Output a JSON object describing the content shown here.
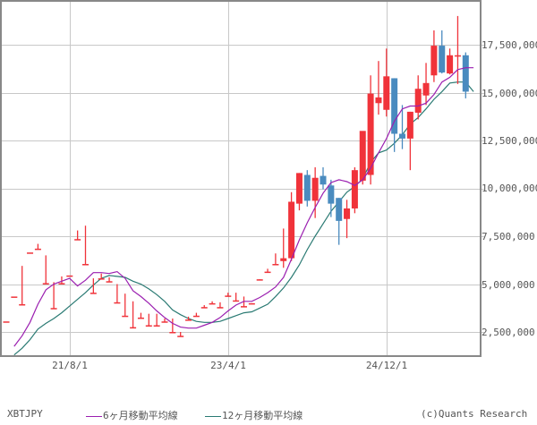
{
  "chart_data": {
    "type": "candlestick",
    "title": "",
    "symbol": "XBTJPY",
    "interval": "monthly",
    "xlabel": "",
    "ylabel": "",
    "ylim": [
      1200000,
      19700000
    ],
    "grid": true,
    "y_ticks": [
      "2,500,000",
      "5,000,000",
      "7,500,000",
      "10,000,000",
      "12,500,000",
      "15,000,000",
      "17,500,000"
    ],
    "y_tick_values": [
      2500000,
      5000000,
      7500000,
      10000000,
      12500000,
      15000000,
      17500000
    ],
    "x_ticks": [
      "21/8/1",
      "23/4/1",
      "24/12/1"
    ],
    "x_tick_index": [
      8.2,
      28.2,
      48.2
    ],
    "legend": [
      {
        "name": "6ヶ月移動平均線",
        "color": "#9b1fb0"
      },
      {
        "name": "12ヶ月移動平均線",
        "color": "#2a7a73"
      }
    ],
    "up_color": "#f0333a",
    "down_color": "#4a8bbf",
    "candles": [
      {
        "o": 3.0,
        "h": 3.0,
        "l": 3.0,
        "c": 3.05
      },
      {
        "o": 4.3,
        "h": 4.3,
        "l": 4.3,
        "c": 4.35
      },
      {
        "o": 3.9,
        "h": 5.95,
        "l": 3.9,
        "c": 3.95
      },
      {
        "o": 6.6,
        "h": 6.6,
        "l": 6.6,
        "c": 6.65
      },
      {
        "o": 6.8,
        "h": 7.1,
        "l": 6.8,
        "c": 6.85
      },
      {
        "o": 5.0,
        "h": 6.5,
        "l": 5.0,
        "c": 5.05
      },
      {
        "o": 3.7,
        "h": 5.1,
        "l": 3.7,
        "c": 3.75
      },
      {
        "o": 5.0,
        "h": 5.4,
        "l": 5.0,
        "c": 5.05
      },
      {
        "o": 5.4,
        "h": 5.4,
        "l": 5.4,
        "c": 5.45
      },
      {
        "o": 7.3,
        "h": 7.8,
        "l": 7.3,
        "c": 7.35
      },
      {
        "o": 6.0,
        "h": 8.05,
        "l": 6.0,
        "c": 6.05
      },
      {
        "o": 4.5,
        "h": 5.3,
        "l": 4.5,
        "c": 4.55
      },
      {
        "o": 5.25,
        "h": 5.55,
        "l": 5.25,
        "c": 5.3
      },
      {
        "o": 5.1,
        "h": 5.35,
        "l": 5.1,
        "c": 5.15
      },
      {
        "o": 4.0,
        "h": 5.0,
        "l": 4.0,
        "c": 4.05
      },
      {
        "o": 3.3,
        "h": 4.5,
        "l": 3.3,
        "c": 3.35
      },
      {
        "o": 2.7,
        "h": 4.1,
        "l": 2.7,
        "c": 2.75
      },
      {
        "o": 3.2,
        "h": 3.5,
        "l": 3.2,
        "c": 3.25
      },
      {
        "o": 2.8,
        "h": 3.45,
        "l": 2.8,
        "c": 2.85
      },
      {
        "o": 2.8,
        "h": 3.45,
        "l": 2.8,
        "c": 2.85
      },
      {
        "o": 3.0,
        "h": 3.2,
        "l": 3.0,
        "c": 3.05
      },
      {
        "o": 2.45,
        "h": 3.2,
        "l": 2.45,
        "c": 2.5
      },
      {
        "o": 2.25,
        "h": 2.5,
        "l": 2.25,
        "c": 2.3
      },
      {
        "o": 3.1,
        "h": 3.3,
        "l": 3.1,
        "c": 3.15
      },
      {
        "o": 3.3,
        "h": 3.5,
        "l": 3.3,
        "c": 3.35
      },
      {
        "o": 3.75,
        "h": 3.9,
        "l": 3.75,
        "c": 3.8
      },
      {
        "o": 3.95,
        "h": 4.1,
        "l": 3.95,
        "c": 4.0
      },
      {
        "o": 3.75,
        "h": 4.05,
        "l": 3.75,
        "c": 3.8
      },
      {
        "o": 4.35,
        "h": 4.55,
        "l": 4.35,
        "c": 4.4
      },
      {
        "o": 4.1,
        "h": 4.55,
        "l": 4.1,
        "c": 4.15
      },
      {
        "o": 3.8,
        "h": 4.35,
        "l": 3.8,
        "c": 3.85
      },
      {
        "o": 3.95,
        "h": 4.0,
        "l": 3.95,
        "c": 4.0
      },
      {
        "o": 5.2,
        "h": 5.25,
        "l": 5.2,
        "c": 5.25
      },
      {
        "o": 5.6,
        "h": 5.8,
        "l": 5.6,
        "c": 5.65
      },
      {
        "o": 6.0,
        "h": 6.6,
        "l": 6.0,
        "c": 6.05
      },
      {
        "o": 6.2,
        "h": 7.9,
        "l": 5.85,
        "c": 6.35
      },
      {
        "o": 6.35,
        "h": 9.8,
        "l": 6.2,
        "c": 9.3
      },
      {
        "o": 9.2,
        "h": 10.8,
        "l": 8.85,
        "c": 10.8
      },
      {
        "o": 10.7,
        "h": 10.95,
        "l": 9.05,
        "c": 9.35
      },
      {
        "o": 9.35,
        "h": 11.1,
        "l": 8.45,
        "c": 10.55
      },
      {
        "o": 10.65,
        "h": 11.1,
        "l": 9.95,
        "c": 10.2
      },
      {
        "o": 10.15,
        "h": 10.45,
        "l": 8.5,
        "c": 9.2
      },
      {
        "o": 9.5,
        "h": 9.5,
        "l": 7.05,
        "c": 8.3
      },
      {
        "o": 8.4,
        "h": 9.4,
        "l": 7.4,
        "c": 8.95
      },
      {
        "o": 8.95,
        "h": 11.1,
        "l": 8.7,
        "c": 10.95
      },
      {
        "o": 10.4,
        "h": 12.1,
        "l": 10.2,
        "c": 13.0
      },
      {
        "o": 10.7,
        "h": 15.9,
        "l": 10.2,
        "c": 14.95
      },
      {
        "o": 14.45,
        "h": 16.65,
        "l": 13.85,
        "c": 14.75
      },
      {
        "o": 14.1,
        "h": 17.3,
        "l": 13.75,
        "c": 15.85
      },
      {
        "o": 15.75,
        "h": 15.75,
        "l": 11.9,
        "c": 12.85
      },
      {
        "o": 12.85,
        "h": 14.35,
        "l": 12.05,
        "c": 12.6
      },
      {
        "o": 12.6,
        "h": 14.0,
        "l": 10.95,
        "c": 14.0
      },
      {
        "o": 13.95,
        "h": 15.9,
        "l": 13.6,
        "c": 15.2
      },
      {
        "o": 14.85,
        "h": 16.55,
        "l": 14.35,
        "c": 15.5
      },
      {
        "o": 15.9,
        "h": 18.25,
        "l": 15.55,
        "c": 17.45
      },
      {
        "o": 17.45,
        "h": 18.25,
        "l": 16.0,
        "c": 16.05
      },
      {
        "o": 16.0,
        "h": 17.3,
        "l": 15.95,
        "c": 16.95
      },
      {
        "o": 16.95,
        "h": 19.0,
        "l": 15.45,
        "c": 16.95
      },
      {
        "o": 16.95,
        "h": 17.1,
        "l": 14.7,
        "c": 15.05
      }
    ],
    "ma6": [
      1.75,
      2.3,
      3.0,
      3.95,
      4.7,
      5.0,
      5.15,
      5.3,
      4.9,
      5.2,
      5.6,
      5.6,
      5.55,
      5.65,
      5.3,
      4.65,
      4.35,
      4.0,
      3.6,
      3.25,
      2.95,
      2.75,
      2.7,
      2.7,
      2.85,
      3.0,
      3.25,
      3.6,
      3.9,
      4.1,
      4.1,
      4.3,
      4.55,
      4.85,
      5.35,
      6.3,
      7.3,
      8.2,
      9.0,
      9.75,
      10.3,
      10.45,
      10.35,
      10.15,
      10.45,
      11.05,
      11.85,
      12.6,
      13.5,
      14.15,
      14.3,
      14.3,
      14.45,
      14.9,
      15.55,
      15.8,
      16.2,
      16.3,
      16.3
    ],
    "ma12": [
      1.3,
      1.65,
      2.1,
      2.65,
      2.95,
      3.2,
      3.5,
      3.85,
      4.2,
      4.55,
      4.95,
      5.3,
      5.45,
      5.4,
      5.35,
      5.15,
      5.0,
      4.75,
      4.45,
      4.1,
      3.65,
      3.4,
      3.2,
      3.05,
      3.0,
      3.0,
      3.05,
      3.2,
      3.35,
      3.5,
      3.55,
      3.75,
      3.95,
      4.35,
      4.8,
      5.35,
      6.0,
      6.8,
      7.5,
      8.15,
      8.8,
      9.3,
      9.8,
      10.1,
      10.5,
      11.35,
      11.85,
      12.0,
      12.35,
      12.8,
      13.35,
      13.7,
      14.15,
      14.65,
      15.05,
      15.5,
      15.55,
      15.55,
      15.05
    ]
  },
  "axis": {
    "y_labels": [
      "17,500,000",
      "15,000,000",
      "12,500,000",
      "10,000,000",
      "7,500,000",
      "5,000,000",
      "2,500,000"
    ],
    "x_labels": [
      "21/8/1",
      "23/4/1",
      "24/12/1"
    ]
  },
  "footer": {
    "symbol": "XBTJPY",
    "legend_ma6": "6ヶ月移動平均線",
    "legend_ma12": "12ヶ月移動平均線",
    "credit": "(c)Quants Research"
  }
}
